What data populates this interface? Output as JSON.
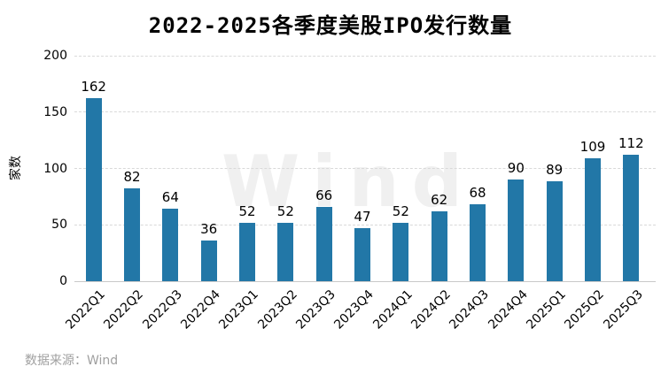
{
  "title": "2022-2025各季度美股IPO发行数量",
  "source_note": "数据来源：Wind",
  "watermark": "Wind",
  "colors": {
    "bar": "#2277A7",
    "grid": "#d9d9d9",
    "axis": "#c9c9c9",
    "text": "#000000",
    "muted_text": "#a0a0a0",
    "watermark": "#f0f0f0",
    "background": "#ffffff"
  },
  "chart_data": {
    "type": "bar",
    "title": "2022-2025各季度美股IPO发行数量",
    "xlabel": "",
    "ylabel": "家数",
    "categories": [
      "2022Q1",
      "2022Q2",
      "2022Q3",
      "2022Q4",
      "2023Q1",
      "2023Q2",
      "2023Q3",
      "2023Q4",
      "2024Q1",
      "2024Q2",
      "2024Q3",
      "2024Q4",
      "2025Q1",
      "2025Q2",
      "2025Q3"
    ],
    "values": [
      162,
      82,
      64,
      36,
      52,
      52,
      66,
      47,
      52,
      62,
      68,
      90,
      89,
      109,
      112
    ],
    "ylim": [
      0,
      200
    ],
    "yticks": [
      0,
      50,
      100,
      150,
      200
    ],
    "grid": "horizontal-dashed",
    "value_labels": true,
    "legend": "none",
    "x_tick_rotation_deg": 45
  }
}
